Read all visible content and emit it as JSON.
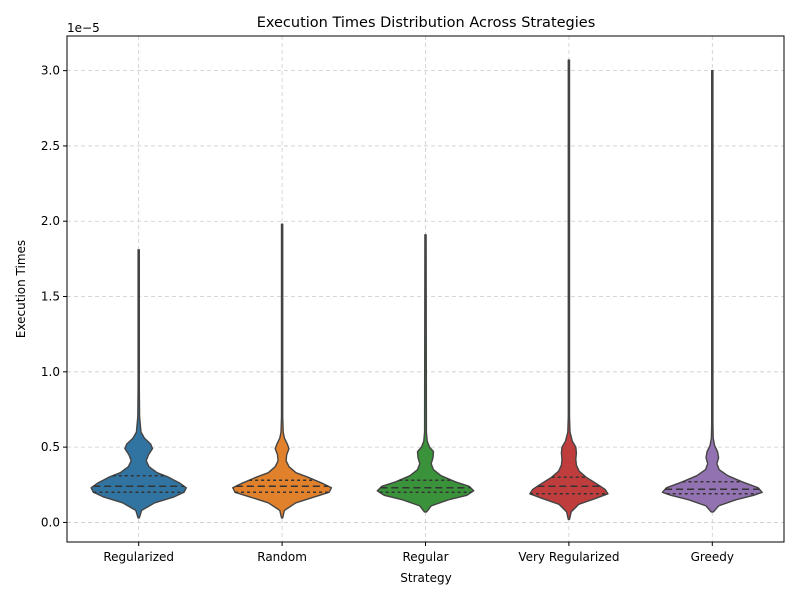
{
  "chart_data": {
    "type": "violin",
    "title": "Execution Times Distribution Across Strategies",
    "xlabel": "Strategy",
    "ylabel": "Execution Times",
    "scale_label": "1e−5",
    "scale_factor": 1e-05,
    "ylim": [
      -0.13,
      3.23
    ],
    "yticks": [
      0.0,
      0.5,
      1.0,
      1.5,
      2.0,
      2.5,
      3.0
    ],
    "ytick_labels": [
      "0.0",
      "0.5",
      "1.0",
      "1.5",
      "2.0",
      "2.5",
      "3.0"
    ],
    "grid": true,
    "inner": "quartile",
    "categories": [
      "Regularized",
      "Random",
      "Regular",
      "Very Regularized",
      "Greedy"
    ],
    "series": [
      {
        "name": "Regularized",
        "color": "#3274a1",
        "min": 0.03,
        "q1": 0.2,
        "median": 0.24,
        "q3": 0.31,
        "max": 1.81,
        "density": [
          [
            0.03,
            0.01
          ],
          [
            0.08,
            0.05
          ],
          [
            0.13,
            0.28
          ],
          [
            0.17,
            0.62
          ],
          [
            0.2,
            0.79
          ],
          [
            0.23,
            0.83
          ],
          [
            0.26,
            0.72
          ],
          [
            0.3,
            0.52
          ],
          [
            0.33,
            0.32
          ],
          [
            0.37,
            0.18
          ],
          [
            0.41,
            0.13
          ],
          [
            0.45,
            0.17
          ],
          [
            0.49,
            0.24
          ],
          [
            0.52,
            0.21
          ],
          [
            0.56,
            0.1
          ],
          [
            0.6,
            0.04
          ],
          [
            0.7,
            0.015
          ],
          [
            0.9,
            0.01
          ],
          [
            1.81,
            0.005
          ]
        ]
      },
      {
        "name": "Random",
        "color": "#e1812c",
        "min": 0.03,
        "q1": 0.2,
        "median": 0.24,
        "q3": 0.28,
        "max": 1.98,
        "density": [
          [
            0.03,
            0.01
          ],
          [
            0.08,
            0.04
          ],
          [
            0.13,
            0.24
          ],
          [
            0.17,
            0.57
          ],
          [
            0.2,
            0.82
          ],
          [
            0.23,
            0.86
          ],
          [
            0.26,
            0.7
          ],
          [
            0.3,
            0.45
          ],
          [
            0.33,
            0.24
          ],
          [
            0.37,
            0.12
          ],
          [
            0.41,
            0.07
          ],
          [
            0.45,
            0.08
          ],
          [
            0.49,
            0.12
          ],
          [
            0.52,
            0.09
          ],
          [
            0.56,
            0.04
          ],
          [
            0.6,
            0.02
          ],
          [
            0.7,
            0.01
          ],
          [
            1.98,
            0.005
          ]
        ]
      },
      {
        "name": "Regular",
        "color": "#3a923a",
        "min": 0.07,
        "q1": 0.2,
        "median": 0.23,
        "q3": 0.28,
        "max": 1.91,
        "density": [
          [
            0.07,
            0.02
          ],
          [
            0.11,
            0.1
          ],
          [
            0.15,
            0.4
          ],
          [
            0.18,
            0.72
          ],
          [
            0.21,
            0.84
          ],
          [
            0.24,
            0.76
          ],
          [
            0.27,
            0.52
          ],
          [
            0.31,
            0.27
          ],
          [
            0.35,
            0.14
          ],
          [
            0.39,
            0.1
          ],
          [
            0.43,
            0.13
          ],
          [
            0.47,
            0.14
          ],
          [
            0.5,
            0.07
          ],
          [
            0.54,
            0.03
          ],
          [
            0.6,
            0.015
          ],
          [
            1.91,
            0.005
          ]
        ]
      },
      {
        "name": "Very Regularized",
        "color": "#c03d3e",
        "min": 0.02,
        "q1": 0.19,
        "median": 0.24,
        "q3": 0.3,
        "max": 3.07,
        "density": [
          [
            0.02,
            0.01
          ],
          [
            0.07,
            0.04
          ],
          [
            0.12,
            0.17
          ],
          [
            0.16,
            0.47
          ],
          [
            0.19,
            0.68
          ],
          [
            0.22,
            0.63
          ],
          [
            0.26,
            0.47
          ],
          [
            0.3,
            0.3
          ],
          [
            0.34,
            0.18
          ],
          [
            0.38,
            0.13
          ],
          [
            0.42,
            0.12
          ],
          [
            0.46,
            0.13
          ],
          [
            0.5,
            0.12
          ],
          [
            0.54,
            0.06
          ],
          [
            0.6,
            0.02
          ],
          [
            0.7,
            0.01
          ],
          [
            3.07,
            0.005
          ]
        ]
      },
      {
        "name": "Greedy",
        "color": "#9372b2",
        "min": 0.07,
        "q1": 0.19,
        "median": 0.22,
        "q3": 0.27,
        "max": 3.0,
        "density": [
          [
            0.07,
            0.02
          ],
          [
            0.11,
            0.11
          ],
          [
            0.15,
            0.41
          ],
          [
            0.18,
            0.72
          ],
          [
            0.2,
            0.87
          ],
          [
            0.23,
            0.8
          ],
          [
            0.27,
            0.52
          ],
          [
            0.31,
            0.27
          ],
          [
            0.35,
            0.12
          ],
          [
            0.39,
            0.08
          ],
          [
            0.43,
            0.11
          ],
          [
            0.47,
            0.09
          ],
          [
            0.51,
            0.04
          ],
          [
            0.56,
            0.015
          ],
          [
            0.65,
            0.01
          ],
          [
            3.0,
            0.005
          ]
        ]
      }
    ]
  }
}
